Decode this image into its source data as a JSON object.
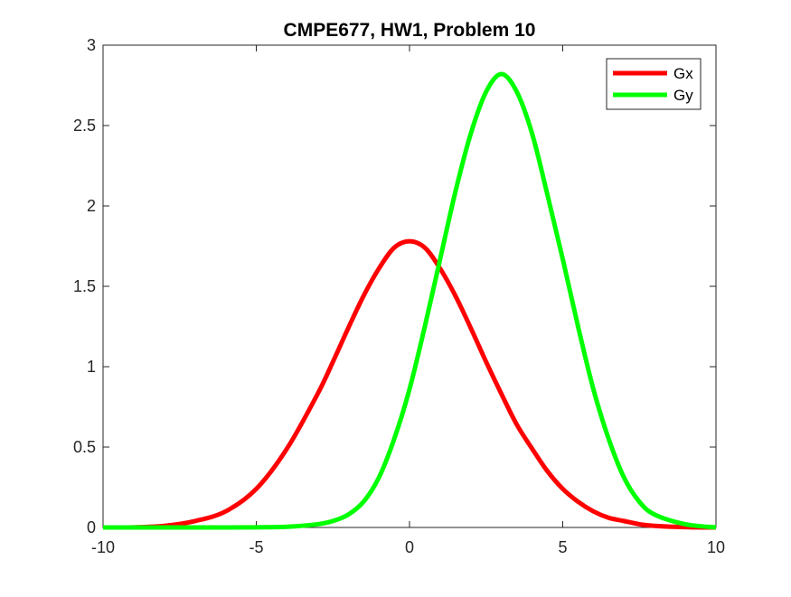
{
  "chart_data": {
    "type": "line",
    "title": "CMPE677, HW1, Problem 10",
    "xlabel": "",
    "ylabel": "",
    "xlim": [
      -10,
      10
    ],
    "ylim": [
      0,
      3
    ],
    "x_ticks": [
      -10,
      -5,
      0,
      5,
      10
    ],
    "x_tick_labels": [
      "-10",
      "-5",
      "0",
      "5",
      "10"
    ],
    "y_ticks": [
      0,
      0.5,
      1,
      1.5,
      2,
      2.5,
      3
    ],
    "y_tick_labels": [
      "0",
      "0.5",
      "1",
      "1.5",
      "2",
      "2.5",
      "3"
    ],
    "grid": false,
    "legend_position": "top-right",
    "x": [
      -10,
      -9,
      -8,
      -7,
      -6,
      -5,
      -4,
      -3,
      -2.5,
      -2,
      -1.5,
      -1,
      -0.5,
      0,
      0.5,
      1,
      1.5,
      2,
      2.5,
      3,
      3.5,
      4,
      4.5,
      5,
      5.5,
      6,
      6.5,
      7,
      7.5,
      8,
      9,
      10
    ],
    "series": [
      {
        "name": "Gx",
        "color": "#ff0000",
        "values": [
          0.0,
          0.001,
          0.01,
          0.04,
          0.1,
          0.24,
          0.49,
          0.83,
          1.03,
          1.24,
          1.44,
          1.61,
          1.74,
          1.78,
          1.74,
          1.61,
          1.44,
          1.24,
          1.03,
          0.83,
          0.64,
          0.49,
          0.35,
          0.24,
          0.16,
          0.1,
          0.06,
          0.04,
          0.02,
          0.01,
          0.002,
          0.0
        ]
      },
      {
        "name": "Gy",
        "color": "#00ff00",
        "values": [
          0.0,
          0.0,
          0.0,
          0.0,
          0.0,
          0.001,
          0.004,
          0.02,
          0.04,
          0.08,
          0.16,
          0.31,
          0.55,
          0.86,
          1.25,
          1.67,
          2.09,
          2.45,
          2.71,
          2.82,
          2.71,
          2.45,
          2.07,
          1.67,
          1.25,
          0.86,
          0.55,
          0.31,
          0.16,
          0.08,
          0.02,
          0.0
        ]
      }
    ]
  }
}
